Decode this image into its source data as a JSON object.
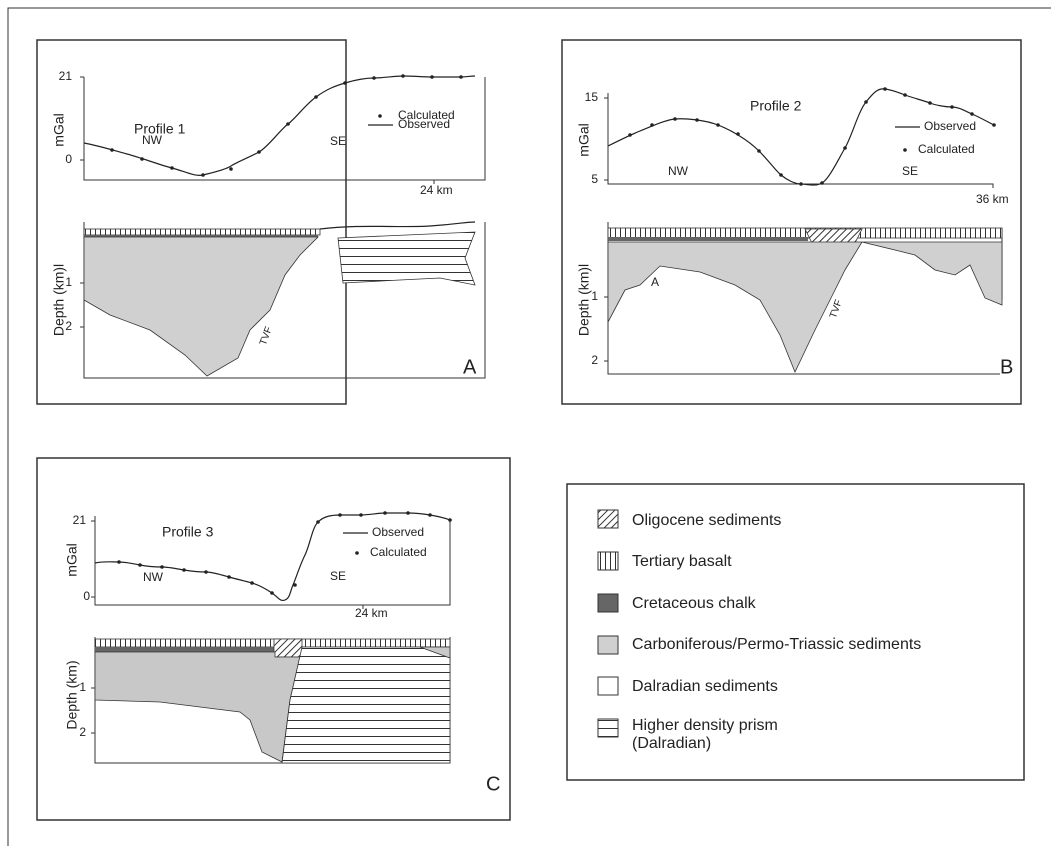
{
  "panels": [
    {
      "label": "A",
      "profile_title": "Profile 1",
      "gravity_axis_label": "mGal",
      "gravity_ticks": [
        "21",
        "0"
      ],
      "distance_tick": "24 km",
      "left_label": "NW",
      "right_label": "SE",
      "key": [
        "Observed",
        "Calculated"
      ],
      "depth_axis_label": "Depth (km)l",
      "depth_ticks": [
        "1",
        "2"
      ],
      "fault_label": "TVF"
    },
    {
      "label": "B",
      "profile_title": "Profile 2",
      "gravity_axis_label": "mGal",
      "gravity_ticks": [
        "15",
        "5"
      ],
      "distance_tick": "36 km",
      "left_label": "NW",
      "right_label": "SE",
      "key": [
        "Observed",
        "Calculated"
      ],
      "depth_axis_label": "Depth (km)l",
      "depth_ticks": [
        "1",
        "2"
      ],
      "fault_label": "TVF",
      "basin_label": "A"
    },
    {
      "label": "C",
      "profile_title": "Profile 3",
      "gravity_axis_label": "mGal",
      "gravity_ticks": [
        "21",
        "0"
      ],
      "distance_tick": "24 km",
      "left_label": "NW",
      "right_label": "SE",
      "key": [
        "Observed",
        "Calculated"
      ],
      "depth_axis_label": "Depth (km)",
      "depth_ticks": [
        "1",
        "2"
      ]
    }
  ],
  "legend": [
    "Oligocene sediments",
    "Tertiary basalt",
    "Cretaceous chalk",
    "Carboniferous/Permo-Triassic sediments",
    "Dalradian sediments",
    "Higher density prism",
    "(Dalradian)"
  ]
}
